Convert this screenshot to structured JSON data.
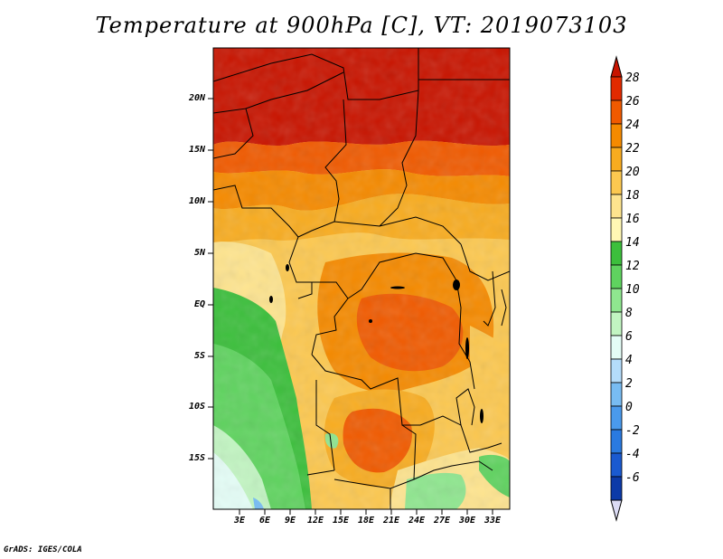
{
  "title": "Temperature at 900hPa [C], VT: 2019073103",
  "footer": "GrADS: IGES/COLA",
  "y_ticks": [
    "20N",
    "15N",
    "10N",
    "5N",
    "EQ",
    "5S",
    "10S",
    "15S"
  ],
  "x_ticks": [
    "3E",
    "6E",
    "9E",
    "12E",
    "15E",
    "18E",
    "21E",
    "24E",
    "27E",
    "30E",
    "33E"
  ],
  "colorbar": {
    "labels": [
      "28",
      "26",
      "24",
      "22",
      "20",
      "18",
      "16",
      "14",
      "12",
      "10",
      "8",
      "6",
      "4",
      "2",
      "0",
      "-2",
      "-4",
      "-6"
    ],
    "colors": [
      "#c81400",
      "#e22a00",
      "#f05a00",
      "#f58a00",
      "#f8ac20",
      "#fcc850",
      "#fee48e",
      "#fff7b4",
      "#3cbf3c",
      "#5fd35f",
      "#8fe68f",
      "#c2f5c2",
      "#e4fdf6",
      "#b4dcfa",
      "#78bcf2",
      "#4a9aec",
      "#2a7ae0",
      "#1a5ad0",
      "#0c3aa8",
      "#1c1c8a"
    ],
    "over_color": "#c81400",
    "under_color": "#dcdcf5"
  },
  "map": {
    "region": "Central Africa",
    "lon_range": [
      0,
      35
    ],
    "lat_range": [
      -20,
      24
    ]
  }
}
